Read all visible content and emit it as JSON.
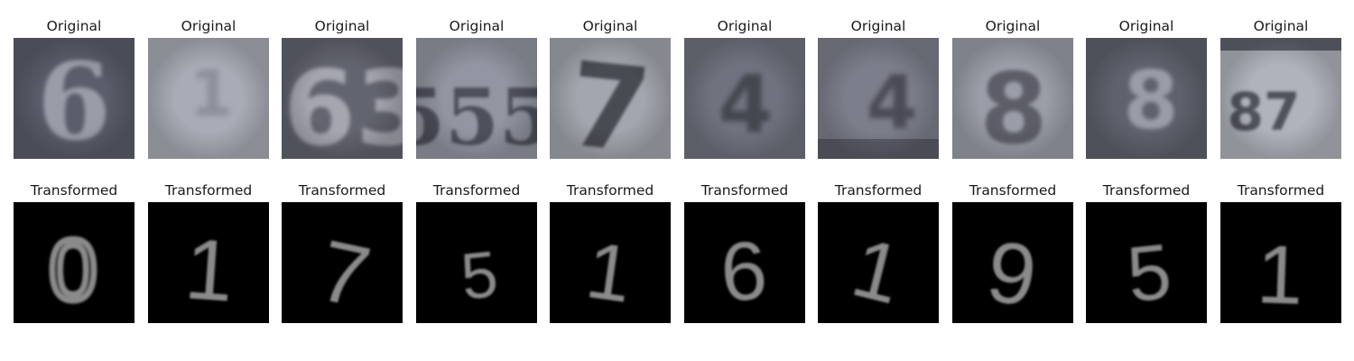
{
  "rows": [
    {
      "caption": "Original",
      "images": [
        {
          "glyph": "6",
          "bg": "#5a5d6a",
          "fg": "#9a9ca8"
        },
        {
          "glyph": "1",
          "bg": "#a9acb6",
          "fg": "#8d909c"
        },
        {
          "glyph": "63",
          "bg": "#62646f",
          "fg": "#a4a6b0"
        },
        {
          "glyph": "555",
          "bg": "#9396a2",
          "fg": "#4e505c"
        },
        {
          "glyph": "7",
          "bg": "#a3a6ae",
          "fg": "#4a4b52"
        },
        {
          "glyph": "4",
          "bg": "#70737f",
          "fg": "#45474f"
        },
        {
          "glyph": "4",
          "bg": "#7c7f8b",
          "fg": "#4b4c57"
        },
        {
          "glyph": "8",
          "bg": "#9b9ea8",
          "fg": "#5b5d68"
        },
        {
          "glyph": "8",
          "bg": "#5f626d",
          "fg": "#9a9da7"
        },
        {
          "glyph": "87",
          "bg": "#b0b3bc",
          "fg": "#4f515c"
        }
      ]
    },
    {
      "caption": "Transformed",
      "images": [
        {
          "glyph": "0",
          "bg": "#000000",
          "fg": "#8a8a8a"
        },
        {
          "glyph": "1",
          "bg": "#000000",
          "fg": "#8a8a8a"
        },
        {
          "glyph": "7",
          "bg": "#000000",
          "fg": "#8a8a8a"
        },
        {
          "glyph": "5",
          "bg": "#000000",
          "fg": "#8a8a8a"
        },
        {
          "glyph": "1",
          "bg": "#000000",
          "fg": "#8a8a8a"
        },
        {
          "glyph": "6",
          "bg": "#000000",
          "fg": "#8a8a8a"
        },
        {
          "glyph": "1",
          "bg": "#000000",
          "fg": "#8a8a8a"
        },
        {
          "glyph": "9",
          "bg": "#000000",
          "fg": "#8a8a8a"
        },
        {
          "glyph": "5",
          "bg": "#000000",
          "fg": "#8a8a8a"
        },
        {
          "glyph": "1",
          "bg": "#000000",
          "fg": "#8a8a8a"
        }
      ]
    }
  ]
}
